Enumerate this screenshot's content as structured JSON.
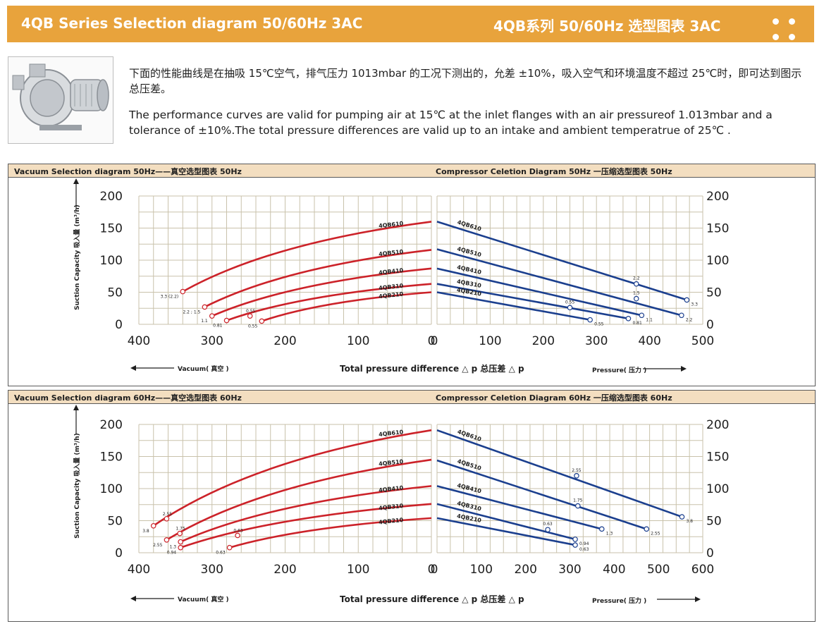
{
  "header": {
    "title_en": "4QB Series Selection diagram 50/60Hz 3AC",
    "title_cn": "4QB系列 50/60Hz 选型图表 3AC"
  },
  "intro": {
    "cn": "下面的性能曲线是在抽吸 15℃空气，排气压力 1013mbar 的工况下测出的，允差 ±10%，吸入空气和环境温度不超过 25℃时，即可达到图示总压差。",
    "en": "The performance curves are valid for pumping air at 15℃ at the inlet flanges with an air pressureof 1.013mbar and a tolerance of ±10%.The total pressure differences are valid up to an intake and ambient temperatrue of 25℃ ."
  },
  "colors": {
    "header": "#e8a33c",
    "panel_bar": "#f3dec0",
    "grid": "#c9c2ab",
    "vacuum": "#cc2229",
    "compressor": "#1b3f8e"
  },
  "chart_data": [
    {
      "type": "line",
      "title_left": "Vacuum Selection diagram 50Hz——真空选型图表 50Hz",
      "title_right": "Compressor Celetion Diagram 50Hz 一压缩选型图表 50Hz",
      "ylabel": "Suction Capacity 吸入量  (m³/h)",
      "xlabel": "Total pressure difference △ p 总压差 △ p",
      "vacuum_label": "Vacuum( 真空 )",
      "pressure_label": "Pressure( 压力 )",
      "ylim": [
        0,
        200
      ],
      "y_ticks": [
        "0",
        "50",
        "100",
        "150",
        "200"
      ],
      "vacuum_xlim": [
        400,
        0
      ],
      "vacuum_ticks": [
        "400",
        "300",
        "200",
        "100",
        "0"
      ],
      "pressure_xlim": [
        0,
        500
      ],
      "pressure_ticks": [
        "0",
        "100",
        "200",
        "300",
        "400",
        "500"
      ],
      "vacuum_series": [
        {
          "name": "4QB610",
          "end_vac": 340,
          "end_flow": 51,
          "zero_flow": 160,
          "marker": "3.3 (2.2)"
        },
        {
          "name": "4QB510",
          "end_vac": 310,
          "end_flow": 27,
          "zero_flow": 116,
          "marker": "2.2 ; 1.5"
        },
        {
          "name": "4QB410",
          "end_vac": 300,
          "end_flow": 13,
          "zero_flow": 87,
          "marker": "1.1"
        },
        {
          "name": "4QB310",
          "end_vac": 280,
          "end_flow": 6,
          "zero_flow": 63,
          "marker": "0.81",
          "marker2": {
            "vac": 248,
            "flow": 13,
            "label": "0.55"
          }
        },
        {
          "name": "4QB210",
          "end_vac": 232,
          "end_flow": 5,
          "zero_flow": 50,
          "marker": "0.55"
        }
      ],
      "pressure_series": [
        {
          "name": "4QB610",
          "zero_flow": 160,
          "end_p": 470,
          "end_flow": 38,
          "marker": "3.3",
          "marker2": {
            "p": 375,
            "flow": 63,
            "label": "2.2"
          }
        },
        {
          "name": "4QB510",
          "zero_flow": 117,
          "end_p": 460,
          "end_flow": 14,
          "marker": "2.2",
          "marker2": {
            "p": 375,
            "flow": 40,
            "label": "1.5"
          }
        },
        {
          "name": "4QB410",
          "zero_flow": 87,
          "end_p": 385,
          "end_flow": 14,
          "marker": "1.1"
        },
        {
          "name": "4QB310",
          "zero_flow": 63,
          "end_p": 360,
          "end_flow": 9,
          "marker": "0.81",
          "marker2": {
            "p": 250,
            "flow": 26,
            "label": "0.55"
          }
        },
        {
          "name": "4QB210",
          "zero_flow": 50,
          "end_p": 288,
          "end_flow": 7,
          "marker": "0.55"
        }
      ]
    },
    {
      "type": "line",
      "title_left": "Vacuum Selection diagram 60Hz——真空选型图表 60Hz",
      "title_right": "Compressor Celetion Diagram 60Hz 一压缩选型图表 60Hz",
      "ylabel": "Suction Capacity 吸入量  (m³/h)",
      "xlabel": "Total pressure difference △ p 总压差 △ p",
      "vacuum_label": "Vacuum( 真空 )",
      "pressure_label": "Pressure( 压力 )",
      "ylim": [
        0,
        200
      ],
      "y_ticks": [
        "0",
        "50",
        "100",
        "150",
        "200"
      ],
      "vacuum_xlim": [
        400,
        0
      ],
      "vacuum_ticks": [
        "400",
        "300",
        "200",
        "100",
        "0"
      ],
      "pressure_xlim": [
        0,
        600
      ],
      "pressure_ticks": [
        "0",
        "100",
        "200",
        "300",
        "400",
        "500",
        "600"
      ],
      "vacuum_series": [
        {
          "name": "4QB610",
          "end_vac": 380,
          "end_flow": 42,
          "zero_flow": 191,
          "marker": "3.8",
          "marker2": {
            "vac": 362,
            "flow": 53,
            "label": "2.55"
          }
        },
        {
          "name": "4QB510",
          "end_vac": 362,
          "end_flow": 20,
          "zero_flow": 145,
          "marker": "2.55",
          "marker2": {
            "vac": 344,
            "flow": 30,
            "label": "1.75"
          }
        },
        {
          "name": "4QB410",
          "end_vac": 343,
          "end_flow": 17,
          "zero_flow": 104,
          "marker": "1.3"
        },
        {
          "name": "4QB310",
          "end_vac": 343,
          "end_flow": 8,
          "zero_flow": 76,
          "marker": "0.94",
          "marker2": {
            "vac": 265,
            "flow": 27,
            "label": "0.63"
          }
        },
        {
          "name": "4QB210",
          "end_vac": 276,
          "end_flow": 8,
          "zero_flow": 54,
          "marker": "0.63"
        }
      ],
      "pressure_series": [
        {
          "name": "4QB610",
          "zero_flow": 191,
          "end_p": 553,
          "end_flow": 56,
          "marker": "3.8",
          "marker2": {
            "p": 315,
            "flow": 120,
            "label": "2.55"
          }
        },
        {
          "name": "4QB510",
          "zero_flow": 144,
          "end_p": 473,
          "end_flow": 37,
          "marker": "2.55",
          "marker2": {
            "p": 318,
            "flow": 73,
            "label": "1.75"
          }
        },
        {
          "name": "4QB410",
          "zero_flow": 104,
          "end_p": 372,
          "end_flow": 37,
          "marker": "1.3"
        },
        {
          "name": "4QB310",
          "zero_flow": 76,
          "end_p": 312,
          "end_flow": 21,
          "marker": "0.94",
          "marker2": {
            "p": 250,
            "flow": 36,
            "label": "0.63"
          }
        },
        {
          "name": "4QB210",
          "zero_flow": 54,
          "end_p": 312,
          "end_flow": 12,
          "marker": "0.63"
        }
      ]
    }
  ]
}
